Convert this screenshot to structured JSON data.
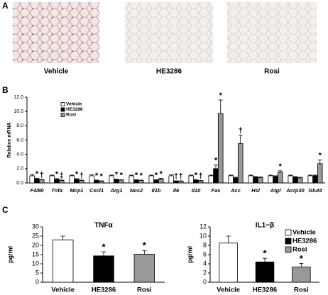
{
  "panel_labels": [
    "A",
    "B",
    "C"
  ],
  "images": [
    {
      "caption": "Vehicle"
    },
    {
      "caption": "HE3286"
    },
    {
      "caption": "Rosi"
    }
  ],
  "chart_data": [
    {
      "type": "bar",
      "y_label": "Relative mRNA",
      "categories": [
        "F4/80",
        "Tnfa",
        "Mcp1",
        "Cxcl1",
        "Arg1",
        "Nos2",
        "Il1b",
        "Il6",
        "Il10",
        "Fas",
        "Acc",
        "Hsl",
        "Atgl",
        "Acrp30",
        "Glut4"
      ],
      "ylim": [
        0,
        12
      ],
      "yticks": [
        {
          "value": 0,
          "label": "0.0"
        },
        {
          "value": 2,
          "label": "2.0"
        },
        {
          "value": 4,
          "label": "4.0"
        },
        {
          "value": 6,
          "label": "6.0"
        },
        {
          "value": 8,
          "label": "8.0"
        },
        {
          "value": 10,
          "label": "10.0"
        },
        {
          "value": 12,
          "label": "12.0"
        }
      ],
      "legend": "upper left",
      "series": [
        {
          "name": "Vehicle",
          "color": "#ffffff",
          "values": [
            1.0,
            1.0,
            1.0,
            1.0,
            1.0,
            1.0,
            1.0,
            1.0,
            1.0,
            1.0,
            1.0,
            1.0,
            1.0,
            1.0,
            1.0
          ],
          "errors": [
            0.15,
            0.1,
            0.1,
            0.15,
            0.1,
            0.1,
            0.1,
            0.15,
            0.1,
            0.1,
            0.1,
            0.1,
            0.1,
            0.1,
            0.1
          ],
          "annotations": [
            null,
            null,
            null,
            null,
            null,
            null,
            null,
            null,
            null,
            null,
            null,
            null,
            null,
            null,
            null
          ]
        },
        {
          "name": "HE3286",
          "color": "#000000",
          "values": [
            0.55,
            0.5,
            0.5,
            0.35,
            0.45,
            0.4,
            0.4,
            0.25,
            0.4,
            2.0,
            0.7,
            0.8,
            0.9,
            0.8,
            1.0
          ],
          "errors": [
            0.1,
            0.1,
            0.1,
            0.05,
            0.1,
            0.05,
            0.05,
            0.05,
            0.05,
            0.5,
            0.1,
            0.1,
            0.1,
            0.1,
            0.1
          ],
          "annotations": [
            "*",
            "*",
            "*",
            "*",
            "*",
            "*",
            "*",
            "†",
            "*",
            "*",
            null,
            null,
            null,
            null,
            null
          ]
        },
        {
          "name": "Rosi",
          "color": "#999999",
          "values": [
            0.45,
            0.35,
            0.35,
            0.25,
            0.4,
            0.35,
            0.55,
            0.25,
            0.3,
            9.7,
            5.5,
            0.75,
            1.5,
            0.7,
            2.7
          ],
          "errors": [
            0.05,
            0.05,
            0.05,
            0.05,
            0.05,
            0.05,
            0.1,
            0.05,
            0.05,
            1.9,
            1.2,
            0.1,
            0.2,
            0.1,
            0.5
          ],
          "annotations": [
            "†",
            "‡",
            "†",
            "*",
            "*",
            "*",
            "*",
            "†",
            "†",
            "*",
            "†",
            null,
            "*",
            null,
            "*"
          ]
        }
      ]
    },
    {
      "type": "bar",
      "title": "TNFα",
      "y_label": "pg/ml",
      "categories": [
        "Vehicle",
        "HE3286",
        "Rosi"
      ],
      "values": [
        23,
        14.3,
        15.2
      ],
      "errors": [
        2,
        2.2,
        2
      ],
      "colors": [
        "#ffffff",
        "#000000",
        "#999999"
      ],
      "annotations": [
        null,
        "*",
        "*"
      ],
      "ylim": [
        0,
        30
      ],
      "yticks": [
        0,
        5,
        10,
        15,
        20,
        25,
        30
      ]
    },
    {
      "type": "bar",
      "title": "IL1−β",
      "y_label": "pg/ml",
      "categories": [
        "Vehicle",
        "HE3286",
        "Rosi"
      ],
      "values": [
        8.5,
        4.4,
        3.3
      ],
      "errors": [
        1.5,
        0.8,
        0.8
      ],
      "colors": [
        "#ffffff",
        "#000000",
        "#999999"
      ],
      "annotations": [
        null,
        "*",
        "*"
      ],
      "legend": "upper right",
      "ylim": [
        0,
        12
      ],
      "yticks": [
        0,
        2,
        4,
        6,
        8,
        10,
        12
      ]
    }
  ]
}
